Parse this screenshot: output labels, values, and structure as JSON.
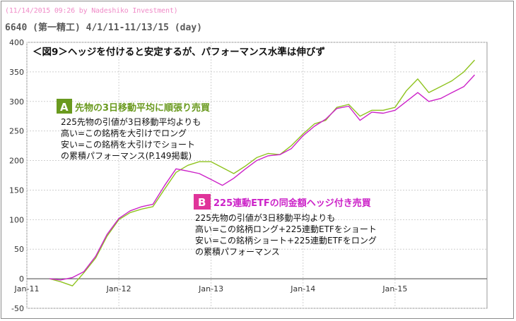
{
  "header": {
    "stamp": "(11/14/2015 09:26 by Nadeshiko Investment)",
    "subtitle": "6640 (第一精工) 4/1/11-11/13/15 (day)"
  },
  "chart_data": {
    "type": "line",
    "title": "＜図9＞ヘッジを付けると安定するが、パフォーマンス水準は伸びず",
    "xlabel": "",
    "ylabel": "",
    "ylim": [
      -50,
      400
    ],
    "yticks": [
      -50,
      0,
      50,
      100,
      150,
      200,
      250,
      300,
      350,
      400
    ],
    "xticks": [
      "Jan-11",
      "Jan-12",
      "Jan-13",
      "Jan-14",
      "Jan-15"
    ],
    "grid": true,
    "colors": {
      "A": "#8fc31f",
      "B": "#cc22c8",
      "badgeA": "#6a9a1f",
      "badgeB": "#e0349a"
    },
    "series": [
      {
        "key": "A",
        "name": "先物の3日移動平均に順張り売買",
        "color": "#8fc31f",
        "x": [
          "2011-04-01",
          "2011-05-15",
          "2011-07-01",
          "2011-08-15",
          "2011-10-01",
          "2011-11-15",
          "2012-01-01",
          "2012-02-15",
          "2012-04-01",
          "2012-05-15",
          "2012-07-01",
          "2012-08-15",
          "2012-10-01",
          "2012-11-15",
          "2013-01-01",
          "2013-02-15",
          "2013-04-01",
          "2013-05-15",
          "2013-07-01",
          "2013-08-15",
          "2013-10-01",
          "2013-11-15",
          "2014-01-01",
          "2014-02-15",
          "2014-04-01",
          "2014-05-15",
          "2014-07-01",
          "2014-08-15",
          "2014-10-01",
          "2014-11-15",
          "2015-01-01",
          "2015-02-15",
          "2015-04-01",
          "2015-05-15",
          "2015-07-01",
          "2015-08-15",
          "2015-10-01",
          "2015-11-13"
        ],
        "values": [
          0,
          -5,
          -12,
          10,
          35,
          72,
          100,
          112,
          118,
          122,
          152,
          180,
          192,
          198,
          198,
          188,
          178,
          190,
          205,
          212,
          210,
          225,
          245,
          262,
          268,
          290,
          295,
          275,
          285,
          285,
          290,
          318,
          338,
          315,
          325,
          335,
          350,
          370
        ]
      },
      {
        "key": "B",
        "name": "225連動ETFの同金額ヘッジ付き売買",
        "color": "#cc22c8",
        "x": [
          "2011-04-01",
          "2011-05-15",
          "2011-07-01",
          "2011-08-15",
          "2011-10-01",
          "2011-11-15",
          "2012-01-01",
          "2012-02-15",
          "2012-04-01",
          "2012-05-15",
          "2012-07-01",
          "2012-08-15",
          "2012-10-01",
          "2012-11-15",
          "2013-01-01",
          "2013-02-15",
          "2013-04-01",
          "2013-05-15",
          "2013-07-01",
          "2013-08-15",
          "2013-10-01",
          "2013-11-15",
          "2014-01-01",
          "2014-02-15",
          "2014-04-01",
          "2014-05-15",
          "2014-07-01",
          "2014-08-15",
          "2014-10-01",
          "2014-11-15",
          "2015-01-01",
          "2015-02-15",
          "2015-04-01",
          "2015-05-15",
          "2015-07-01",
          "2015-08-15",
          "2015-10-01",
          "2015-11-13"
        ],
        "values": [
          0,
          -2,
          2,
          12,
          38,
          75,
          102,
          115,
          122,
          126,
          158,
          186,
          182,
          178,
          168,
          158,
          170,
          185,
          200,
          208,
          210,
          220,
          242,
          258,
          270,
          288,
          292,
          268,
          282,
          280,
          285,
          300,
          315,
          300,
          305,
          315,
          325,
          345
        ]
      }
    ],
    "annotations": [
      {
        "key": "A",
        "badge": "A",
        "title": "先物の3日移動平均に順張り売買",
        "lines": [
          "225先物の引値が3日移動平均よりも",
          "高い=この銘柄を大引けでロング",
          "安い=この銘柄を大引けでショート",
          "の累積パフォーマンス(P.149掲載)"
        ]
      },
      {
        "key": "B",
        "badge": "B",
        "title": "225連動ETFの同金額ヘッジ付き売買",
        "lines": [
          "225先物の引値が3日移動平均よりも",
          "高い=この銘柄ロング+225連動ETFをショート",
          "安い=この銘柄ショート+225連動ETFをロング",
          "の累積パフォーマンス"
        ]
      }
    ]
  }
}
